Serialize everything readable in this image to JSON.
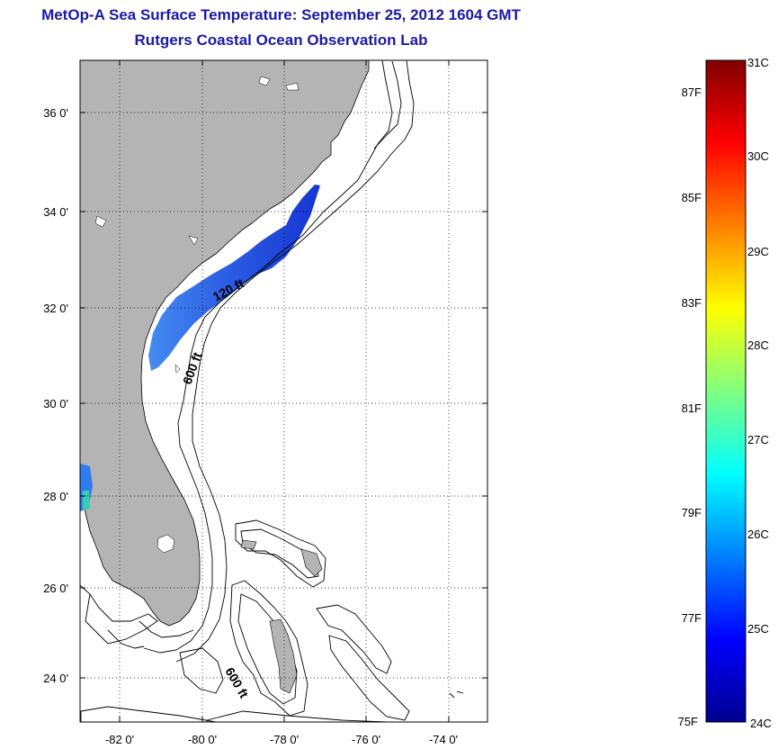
{
  "title": {
    "line1": "MetOp-A Sea Surface Temperature:  September 25, 2012 1604 GMT",
    "line2": "Rutgers Coastal Ocean Observation Lab"
  },
  "map": {
    "lon_ticks": [
      "-82 0'",
      "-80 0'",
      "-78 0'",
      "-76 0'",
      "-74 0'"
    ],
    "lat_ticks": [
      "36 0'",
      "34 0'",
      "32 0'",
      "30 0'",
      "28 0'",
      "26 0'",
      "24 0'"
    ],
    "contour_labels": [
      "120 ft",
      "600 ft",
      "600 ft"
    ],
    "land_color": "#b4b4b4",
    "ocean_color": "#ffffff",
    "sst_swath_color": "#2a5ee8"
  },
  "colorbar": {
    "celsius_labels": [
      "31C",
      "30C",
      "29C",
      "28C",
      "27C",
      "26C",
      "25C",
      "24C"
    ],
    "fahrenheit_labels": [
      "87F",
      "85F",
      "83F",
      "81F",
      "79F",
      "77F",
      "75F"
    ],
    "colormap": "jet"
  }
}
